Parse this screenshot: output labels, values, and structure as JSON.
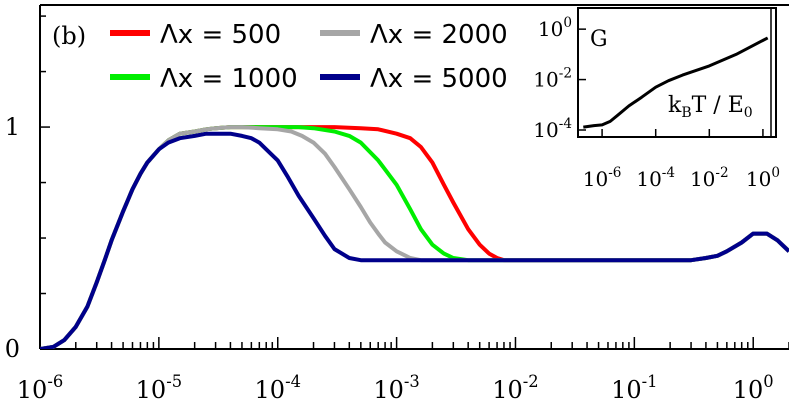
{
  "panel_label": "(b)",
  "chart_data": [
    {
      "type": "line",
      "title": "",
      "xlabel": "",
      "ylabel": "",
      "x_scale": "log",
      "xlim": [
        1e-06,
        2
      ],
      "ylim": [
        0,
        1.55
      ],
      "x_tick_labels": [
        {
          "base": "10",
          "exp": "-6",
          "value": 1e-06
        },
        {
          "base": "10",
          "exp": "-5",
          "value": 1e-05
        },
        {
          "base": "10",
          "exp": "-4",
          "value": 0.0001
        },
        {
          "base": "10",
          "exp": "-3",
          "value": 0.001
        },
        {
          "base": "10",
          "exp": "-2",
          "value": 0.01
        },
        {
          "base": "10",
          "exp": "-1",
          "value": 0.1
        },
        {
          "base": "10",
          "exp": "0",
          "value": 1
        }
      ],
      "y_tick_labels": [
        {
          "label": "0",
          "value": 0
        },
        {
          "label": "1",
          "value": 1
        }
      ],
      "legend_position": "top-left",
      "series": [
        {
          "name": "Λx = 500",
          "color": "#ff0000",
          "x": [
            1e-06,
            1.3e-06,
            1.6e-06,
            2e-06,
            2.5e-06,
            3e-06,
            3.5e-06,
            4e-06,
            5e-06,
            6e-06,
            7e-06,
            8e-06,
            1e-05,
            1.2e-05,
            1.5e-05,
            2e-05,
            2.5e-05,
            3e-05,
            4e-05,
            5e-05,
            7e-05,
            0.0001,
            0.0002,
            0.0003,
            0.0005,
            0.0007,
            0.001,
            0.0013,
            0.0016,
            0.002,
            0.0025,
            0.003,
            0.004,
            0.005,
            0.006,
            0.007,
            0.008,
            0.01,
            0.02,
            0.05,
            0.1,
            0.15,
            0.2,
            0.3,
            0.4,
            0.5,
            0.6,
            0.8,
            1.0,
            1.3,
            1.6,
            2.0
          ],
          "y": [
            0.0,
            0.01,
            0.04,
            0.1,
            0.19,
            0.3,
            0.4,
            0.49,
            0.62,
            0.72,
            0.79,
            0.84,
            0.9,
            0.94,
            0.97,
            0.98,
            0.99,
            0.995,
            1.0,
            1.0,
            1.0,
            1.0,
            1.0,
            1.0,
            0.995,
            0.99,
            0.97,
            0.95,
            0.91,
            0.84,
            0.74,
            0.66,
            0.54,
            0.47,
            0.43,
            0.41,
            0.4,
            0.4,
            0.4,
            0.4,
            0.4,
            0.4,
            0.4,
            0.4,
            0.41,
            0.42,
            0.44,
            0.48,
            0.52,
            0.52,
            0.49,
            0.44
          ]
        },
        {
          "name": "Λx = 1000",
          "color": "#00ee00",
          "x": [
            1e-06,
            1.3e-06,
            1.6e-06,
            2e-06,
            2.5e-06,
            3e-06,
            3.5e-06,
            4e-06,
            5e-06,
            6e-06,
            7e-06,
            8e-06,
            1e-05,
            1.2e-05,
            1.5e-05,
            2e-05,
            2.5e-05,
            3e-05,
            4e-05,
            5e-05,
            7e-05,
            0.0001,
            0.00015,
            0.0002,
            0.0003,
            0.0004,
            0.0005,
            0.0007,
            0.001,
            0.0013,
            0.0016,
            0.002,
            0.0025,
            0.003,
            0.004,
            0.005,
            0.01,
            0.02,
            0.05,
            0.1,
            0.15,
            0.2,
            0.3,
            0.4,
            0.5,
            0.6,
            0.8,
            1.0,
            1.3,
            1.6,
            2.0
          ],
          "y": [
            0.0,
            0.01,
            0.04,
            0.1,
            0.19,
            0.3,
            0.4,
            0.49,
            0.62,
            0.72,
            0.79,
            0.84,
            0.9,
            0.94,
            0.97,
            0.98,
            0.99,
            0.995,
            1.0,
            1.0,
            1.0,
            1.0,
            1.0,
            0.995,
            0.98,
            0.96,
            0.93,
            0.85,
            0.74,
            0.63,
            0.54,
            0.47,
            0.43,
            0.41,
            0.4,
            0.4,
            0.4,
            0.4,
            0.4,
            0.4,
            0.4,
            0.4,
            0.4,
            0.41,
            0.42,
            0.44,
            0.48,
            0.52,
            0.52,
            0.49,
            0.44
          ]
        },
        {
          "name": "Λx = 2000",
          "color": "#a6a6a6",
          "x": [
            1e-06,
            1.3e-06,
            1.6e-06,
            2e-06,
            2.5e-06,
            3e-06,
            3.5e-06,
            4e-06,
            5e-06,
            6e-06,
            7e-06,
            8e-06,
            1e-05,
            1.2e-05,
            1.5e-05,
            2e-05,
            2.5e-05,
            3e-05,
            4e-05,
            5e-05,
            7e-05,
            0.0001,
            0.00013,
            0.00016,
            0.0002,
            0.00025,
            0.0003,
            0.0004,
            0.0005,
            0.0006,
            0.0007,
            0.0008,
            0.001,
            0.0013,
            0.0016,
            0.002,
            0.003,
            0.005,
            0.01,
            0.02,
            0.05,
            0.1,
            0.15,
            0.2,
            0.3,
            0.4,
            0.5,
            0.6,
            0.8,
            1.0,
            1.3,
            1.6,
            2.0
          ],
          "y": [
            0.0,
            0.01,
            0.04,
            0.1,
            0.19,
            0.3,
            0.4,
            0.49,
            0.62,
            0.72,
            0.79,
            0.84,
            0.9,
            0.94,
            0.97,
            0.98,
            0.99,
            0.995,
            1.0,
            1.0,
            0.995,
            0.99,
            0.98,
            0.96,
            0.93,
            0.88,
            0.82,
            0.72,
            0.64,
            0.57,
            0.52,
            0.48,
            0.44,
            0.41,
            0.4,
            0.4,
            0.4,
            0.4,
            0.4,
            0.4,
            0.4,
            0.4,
            0.4,
            0.4,
            0.4,
            0.41,
            0.42,
            0.44,
            0.48,
            0.52,
            0.52,
            0.49,
            0.44
          ]
        },
        {
          "name": "Λx = 5000",
          "color": "#00008b",
          "x": [
            1e-06,
            1.3e-06,
            1.6e-06,
            2e-06,
            2.5e-06,
            3e-06,
            3.5e-06,
            4e-06,
            5e-06,
            6e-06,
            7e-06,
            8e-06,
            1e-05,
            1.2e-05,
            1.5e-05,
            2e-05,
            2.5e-05,
            3e-05,
            4e-05,
            5e-05,
            6e-05,
            7e-05,
            8e-05,
            0.0001,
            0.00012,
            0.00015,
            0.0002,
            0.00025,
            0.0003,
            0.0004,
            0.0005,
            0.0007,
            0.001,
            0.002,
            0.005,
            0.01,
            0.02,
            0.05,
            0.1,
            0.15,
            0.2,
            0.3,
            0.4,
            0.5,
            0.6,
            0.8,
            1.0,
            1.3,
            1.6,
            2.0
          ],
          "y": [
            0.0,
            0.01,
            0.04,
            0.1,
            0.19,
            0.3,
            0.4,
            0.49,
            0.62,
            0.72,
            0.79,
            0.84,
            0.9,
            0.93,
            0.95,
            0.96,
            0.97,
            0.97,
            0.97,
            0.96,
            0.95,
            0.93,
            0.9,
            0.85,
            0.78,
            0.69,
            0.59,
            0.51,
            0.45,
            0.41,
            0.4,
            0.4,
            0.4,
            0.4,
            0.4,
            0.4,
            0.4,
            0.4,
            0.4,
            0.4,
            0.4,
            0.4,
            0.41,
            0.42,
            0.44,
            0.48,
            0.52,
            0.52,
            0.49,
            0.44
          ]
        }
      ]
    },
    {
      "type": "line",
      "title": "",
      "ylabel": "G",
      "xlabel": {
        "parts": [
          {
            "t": "k"
          },
          {
            "t": "B",
            "sub": true
          },
          {
            "t": "T / E"
          },
          {
            "t": "0",
            "sub": true
          }
        ]
      },
      "x_scale": "log",
      "y_scale": "log",
      "xlim": [
        1.5e-07,
        2
      ],
      "ylim": [
        0.0001,
        1.6
      ],
      "x_tick_labels": [
        {
          "base": "10",
          "exp": "-6",
          "value": 1e-06
        },
        {
          "base": "10",
          "exp": "-4",
          "value": 0.0001
        },
        {
          "base": "10",
          "exp": "-2",
          "value": 0.01
        },
        {
          "base": "10",
          "exp": "0",
          "value": 1
        }
      ],
      "y_tick_labels": [
        {
          "base": "10",
          "exp": "-4",
          "value": 0.0001
        },
        {
          "base": "10",
          "exp": "-2",
          "value": 0.01
        },
        {
          "base": "10",
          "exp": "0",
          "value": 1
        }
      ],
      "series": [
        {
          "color": "#000000",
          "x": [
            2e-07,
            5e-07,
            1e-06,
            2e-06,
            4e-06,
            1e-05,
            3e-05,
            0.0001,
            0.0003,
            0.001,
            0.01,
            0.1,
            1.5
          ],
          "y": [
            0.00013,
            0.00015,
            0.00016,
            0.00022,
            0.0004,
            0.0009,
            0.002,
            0.005,
            0.009,
            0.015,
            0.035,
            0.1,
            0.45
          ]
        }
      ]
    }
  ]
}
